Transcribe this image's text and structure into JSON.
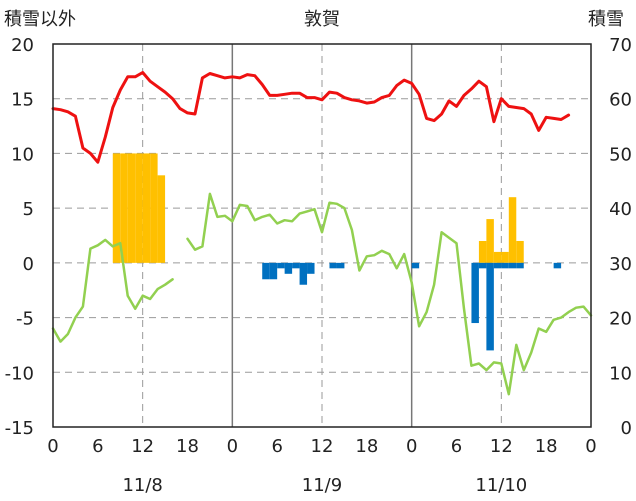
{
  "chart_data": {
    "type": "bar+line",
    "title": "敦賀",
    "left_axis": {
      "label": "積雪以外",
      "ylim": [
        -15,
        20
      ],
      "ticks": [
        -15,
        -10,
        -5,
        0,
        5,
        10,
        15,
        20
      ]
    },
    "right_axis": {
      "label": "積雪",
      "ylim": [
        0,
        70
      ],
      "ticks": [
        0,
        10,
        20,
        30,
        40,
        50,
        60,
        70
      ]
    },
    "x_axis": {
      "range_hours": [
        0,
        72
      ],
      "tick_labels": [
        "0",
        "6",
        "12",
        "18",
        "0",
        "6",
        "12",
        "18",
        "0",
        "6",
        "12",
        "18",
        "0"
      ],
      "dates": [
        {
          "label": "11/8",
          "center_hour": 12
        },
        {
          "label": "11/9",
          "center_hour": 36
        },
        {
          "label": "11/10",
          "center_hour": 60
        }
      ]
    },
    "grid": "dashed horizontal at each left tick; dashed vertical at 12h; solid vertical at day boundaries",
    "colors": {
      "red": "#ee1111",
      "green": "#92d050",
      "orange": "#ffc000",
      "blue": "#0070c0"
    },
    "series": [
      {
        "axis": "left",
        "style": "line",
        "color": "red",
        "points": [
          [
            0,
            14.1
          ],
          [
            1,
            14
          ],
          [
            2,
            13.8
          ],
          [
            3,
            13.4
          ],
          [
            4,
            10.5
          ],
          [
            5,
            10
          ],
          [
            6,
            9.2
          ],
          [
            7,
            11.5
          ],
          [
            8,
            14.2
          ],
          [
            9,
            15.8
          ],
          [
            10,
            17
          ],
          [
            11,
            17
          ],
          [
            12,
            17.4
          ],
          [
            13,
            16.6
          ],
          [
            14,
            16.1
          ],
          [
            15,
            15.6
          ],
          [
            16,
            15
          ],
          [
            17,
            14.1
          ],
          [
            18,
            13.7
          ],
          [
            19,
            13.6
          ],
          [
            20,
            16.9
          ],
          [
            21,
            17.3
          ],
          [
            22,
            17.1
          ],
          [
            23,
            16.9
          ],
          [
            24,
            17
          ],
          [
            25,
            16.9
          ],
          [
            26,
            17.2
          ],
          [
            27,
            17.1
          ],
          [
            28,
            16.3
          ],
          [
            29,
            15.3
          ],
          [
            30,
            15.3
          ],
          [
            31,
            15.4
          ],
          [
            32,
            15.5
          ],
          [
            33,
            15.5
          ],
          [
            34,
            15.1
          ],
          [
            35,
            15.1
          ],
          [
            36,
            14.9
          ],
          [
            37,
            15.6
          ],
          [
            38,
            15.5
          ],
          [
            39,
            15.1
          ],
          [
            40,
            14.9
          ],
          [
            41,
            14.8
          ],
          [
            42,
            14.6
          ],
          [
            43,
            14.7
          ],
          [
            44,
            15.1
          ],
          [
            45,
            15.3
          ],
          [
            46,
            16.2
          ],
          [
            47,
            16.7
          ],
          [
            48,
            16.4
          ],
          [
            49,
            15.4
          ],
          [
            50,
            13.2
          ],
          [
            51,
            13
          ],
          [
            52,
            13.6
          ],
          [
            53,
            14.8
          ],
          [
            54,
            14.3
          ],
          [
            55,
            15.3
          ],
          [
            56,
            15.9
          ],
          [
            57,
            16.6
          ],
          [
            58,
            16.1
          ],
          [
            59,
            12.9
          ],
          [
            60,
            15
          ],
          [
            61,
            14.3
          ],
          [
            62,
            14.2
          ],
          [
            63,
            14.1
          ],
          [
            64,
            13.6
          ],
          [
            65,
            12.1
          ],
          [
            66,
            13.3
          ],
          [
            67,
            13.2
          ],
          [
            68,
            13.1
          ],
          [
            69,
            13.5
          ]
        ]
      },
      {
        "axis": "left",
        "style": "line",
        "color": "green",
        "points": [
          [
            0,
            -6
          ],
          [
            1,
            -7.2
          ],
          [
            2,
            -6.5
          ],
          [
            3,
            -5
          ],
          [
            4,
            -4
          ],
          [
            5,
            1.3
          ],
          [
            6,
            1.6
          ],
          [
            7,
            2.1
          ],
          [
            8,
            1.5
          ],
          [
            9,
            1.8
          ],
          [
            10,
            -3
          ],
          [
            11,
            -4.2
          ],
          [
            12,
            -3
          ],
          [
            13,
            -3.3
          ],
          [
            14,
            -2.4
          ],
          [
            15,
            -2
          ],
          [
            16,
            -1.5
          ],
          null,
          [
            18,
            2.2
          ],
          [
            19,
            1.2
          ],
          [
            20,
            1.5
          ],
          [
            21,
            6.3
          ],
          [
            22,
            4.2
          ],
          [
            23,
            4.3
          ],
          [
            24,
            3.8
          ],
          [
            25,
            5.3
          ],
          [
            26,
            5.2
          ],
          [
            27,
            3.9
          ],
          [
            28,
            4.2
          ],
          [
            29,
            4.4
          ],
          [
            30,
            3.6
          ],
          [
            31,
            3.9
          ],
          [
            32,
            3.8
          ],
          [
            33,
            4.5
          ],
          [
            34,
            4.7
          ],
          [
            35,
            4.9
          ],
          [
            36,
            2.8
          ],
          [
            37,
            5.5
          ],
          [
            38,
            5.4
          ],
          [
            39,
            5
          ],
          [
            40,
            3
          ],
          [
            41,
            -0.7
          ],
          [
            42,
            0.6
          ],
          [
            43,
            0.7
          ],
          [
            44,
            1.1
          ],
          [
            45,
            0.8
          ],
          [
            46,
            -0.5
          ],
          [
            47,
            0.8
          ],
          [
            48,
            -1.8
          ],
          [
            49,
            -5.8
          ],
          [
            50,
            -4.5
          ],
          [
            51,
            -2
          ],
          [
            52,
            2.8
          ],
          [
            53,
            2.3
          ],
          [
            54,
            1.8
          ],
          [
            55,
            -4.2
          ],
          [
            56,
            -9.4
          ],
          [
            57,
            -9.2
          ],
          [
            58,
            -9.8
          ],
          [
            59,
            -9.1
          ],
          [
            60,
            -9.2
          ],
          [
            61,
            -12
          ],
          [
            62,
            -7.5
          ],
          [
            63,
            -9.8
          ],
          [
            64,
            -8.2
          ],
          [
            65,
            -6
          ],
          [
            66,
            -6.3
          ],
          [
            67,
            -5.2
          ],
          [
            68,
            -5
          ],
          [
            69,
            -4.5
          ],
          [
            70,
            -4.1
          ],
          [
            71,
            -4
          ],
          [
            72,
            -4.8
          ]
        ]
      },
      {
        "axis": "left",
        "style": "bars",
        "color": "orange",
        "values": [
          [
            8,
            10
          ],
          [
            9,
            10
          ],
          [
            10,
            10
          ],
          [
            11,
            10
          ],
          [
            12,
            10
          ],
          [
            13,
            10
          ],
          [
            14,
            8
          ],
          [
            57,
            2
          ],
          [
            58,
            4
          ],
          [
            59,
            1
          ],
          [
            60,
            1
          ],
          [
            61,
            6
          ],
          [
            62,
            2
          ]
        ]
      },
      {
        "axis": "left",
        "style": "bars",
        "color": "blue",
        "values": [
          [
            28,
            -1.5
          ],
          [
            29,
            -1.5
          ],
          [
            30,
            -0.5
          ],
          [
            31,
            -1
          ],
          [
            32,
            -0.5
          ],
          [
            33,
            -2
          ],
          [
            34,
            -1
          ],
          [
            37,
            -0.5
          ],
          [
            38,
            -0.5
          ],
          [
            48,
            -0.5
          ],
          [
            56,
            -5.5
          ],
          [
            57,
            -0.5
          ],
          [
            58,
            -8
          ],
          [
            59,
            -0.5
          ],
          [
            60,
            -0.5
          ],
          [
            61,
            -0.5
          ],
          [
            62,
            -0.5
          ],
          [
            67,
            -0.5
          ]
        ]
      }
    ]
  }
}
